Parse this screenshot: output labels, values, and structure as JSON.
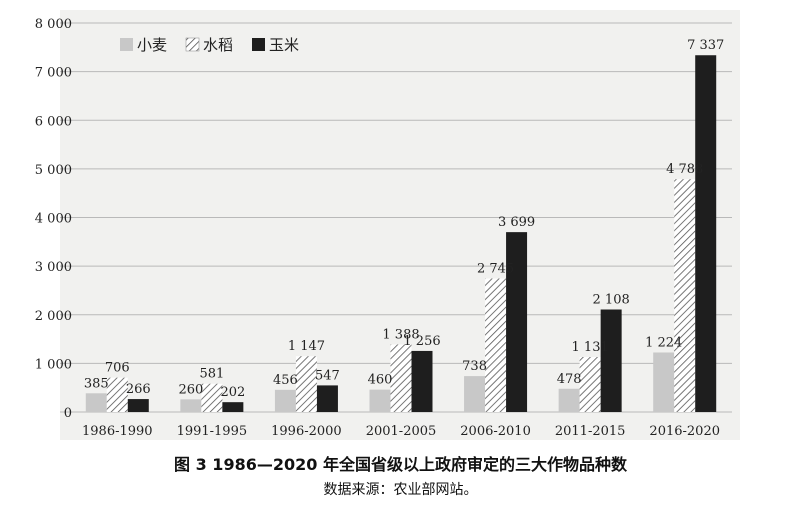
{
  "caption": "图 3  1986—2020 年全国省级以上政府审定的三大作物品种数",
  "source": "数据来源：农业部网站。",
  "chart_data": {
    "type": "bar",
    "categories": [
      "1986-1990",
      "1991-1995",
      "1996-2000",
      "2001-2005",
      "2006-2010",
      "2011-2015",
      "2016-2020"
    ],
    "series": [
      {
        "name": "小麦",
        "values": [
          385,
          260,
          456,
          460,
          738,
          478,
          1224
        ],
        "labels": [
          "385",
          "260",
          "456",
          "460",
          "738",
          "478",
          "1 224"
        ],
        "color": "#c8c8c8",
        "pattern": "solid"
      },
      {
        "name": "水稻",
        "values": [
          706,
          581,
          1147,
          1388,
          2745,
          1131,
          4788
        ],
        "labels": [
          "706",
          "581",
          "1 147",
          "1 388",
          "2 745",
          "1 131",
          "4 788"
        ],
        "color": "#ffffff",
        "pattern": "hatch"
      },
      {
        "name": "玉米",
        "values": [
          266,
          202,
          547,
          1256,
          3699,
          2108,
          7337
        ],
        "labels": [
          "266",
          "202",
          "547",
          "1 256",
          "3 699",
          "2 108",
          "7 337"
        ],
        "color": "#1e1e1e",
        "pattern": "solid"
      }
    ],
    "yticks": [
      0,
      1000,
      2000,
      3000,
      4000,
      5000,
      6000,
      7000,
      8000
    ],
    "ytick_labels": [
      "0",
      "1 000",
      "2 000",
      "3 000",
      "4 000",
      "5 000",
      "6 000",
      "7 000",
      "8 000"
    ],
    "ylim": [
      0,
      8000
    ],
    "grid": true,
    "legend_position": "top-left"
  }
}
